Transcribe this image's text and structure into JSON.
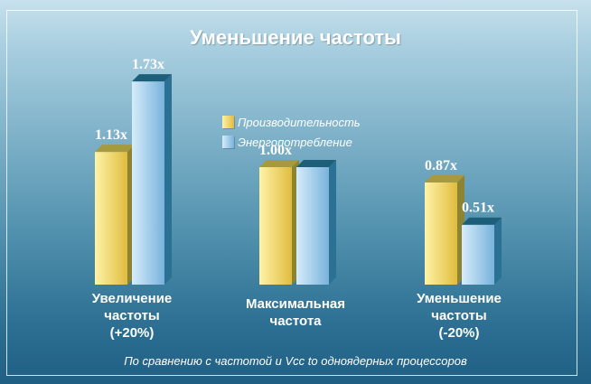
{
  "chart_data": {
    "type": "bar",
    "title": "Уменьшение частоты",
    "categories": [
      [
        "Увеличение",
        "частоты",
        "(+20%)"
      ],
      [
        "Максимальная",
        "частота"
      ],
      [
        "Уменьшение",
        "частоты",
        "(-20%)"
      ]
    ],
    "series": [
      {
        "name": "Производительность",
        "values": [
          1.13,
          1.0,
          0.87
        ],
        "labels": [
          "1.13x",
          "1.00x",
          "0.87x"
        ],
        "colors": {
          "front_light": "#fff3a6",
          "front_dark": "#e0bc3f",
          "top": "#a59a3f",
          "side": "#8c8333"
        }
      },
      {
        "name": "Энергопотребление",
        "values": [
          1.73,
          1.0,
          0.51
        ],
        "labels": [
          "1.73x",
          "",
          "0.51x"
        ],
        "colors": {
          "front_light": "#d6ecfa",
          "front_dark": "#78b2dc",
          "top": "#1d5f78",
          "side": "#2a7194"
        }
      }
    ],
    "ylim": [
      0,
      1.9
    ],
    "grid": false,
    "legend_position": "top-center",
    "footnote": "По сравнению с частотой и Vcc to одноядерных процессоров"
  }
}
